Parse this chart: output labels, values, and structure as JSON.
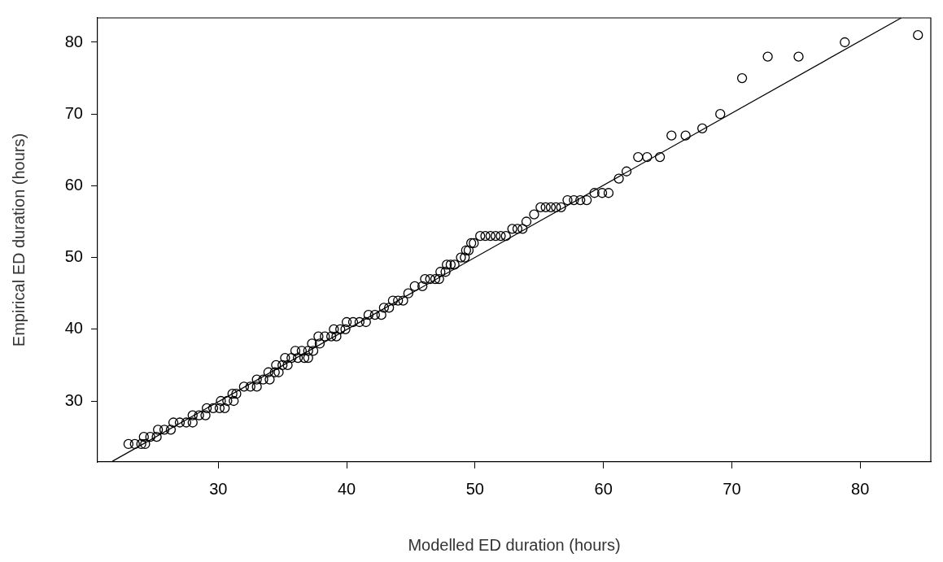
{
  "chart_data": {
    "type": "scatter",
    "xlabel": "Modelled ED duration (hours)",
    "ylabel": "Empirical ED duration (hours)",
    "xlim": [
      20.6,
      85.5
    ],
    "ylim": [
      21.5,
      83.4
    ],
    "xticks": [
      30,
      40,
      50,
      60,
      70,
      80
    ],
    "yticks": [
      30,
      40,
      50,
      60,
      70,
      80
    ],
    "grid": false,
    "legend": false,
    "series": [
      {
        "marker": "circle",
        "color": "#000000",
        "x": [
          23.0,
          23.5,
          24.0,
          24.3,
          24.2,
          24.7,
          25.2,
          25.3,
          25.8,
          26.3,
          26.5,
          27.0,
          27.5,
          28.0,
          28.0,
          28.5,
          29.0,
          29.1,
          29.6,
          30.1,
          30.5,
          30.2,
          30.7,
          31.2,
          31.1,
          31.4,
          32.0,
          32.5,
          33.0,
          33.0,
          33.5,
          34.0,
          33.9,
          34.4,
          34.7,
          34.5,
          35.0,
          35.4,
          35.2,
          35.7,
          36.2,
          36.7,
          37.0,
          36.0,
          36.5,
          37.0,
          37.4,
          37.3,
          37.9,
          37.8,
          38.3,
          38.8,
          39.2,
          39.0,
          39.5,
          39.9,
          40.0,
          40.5,
          41.0,
          41.5,
          41.7,
          42.2,
          42.7,
          42.9,
          43.3,
          43.6,
          44.0,
          44.4,
          44.8,
          45.3,
          45.9,
          46.1,
          46.5,
          46.9,
          47.2,
          47.3,
          47.7,
          47.8,
          48.1,
          48.4,
          48.9,
          49.2,
          49.3,
          49.5,
          49.7,
          49.9,
          50.4,
          50.8,
          51.2,
          51.6,
          52.0,
          52.4,
          52.9,
          53.3,
          53.7,
          54.0,
          54.6,
          55.1,
          55.5,
          55.9,
          56.3,
          56.7,
          57.2,
          57.7,
          58.2,
          58.7,
          59.3,
          59.9,
          60.4,
          61.2,
          61.8,
          62.7,
          63.4,
          64.4,
          65.3,
          66.4,
          67.7,
          69.1,
          70.8,
          72.8,
          75.2,
          78.8,
          84.5
        ],
        "values": [
          24,
          24,
          24,
          24,
          25,
          25,
          25,
          26,
          26,
          26,
          27,
          27,
          27,
          27,
          28,
          28,
          28,
          29,
          29,
          29,
          29,
          30,
          30,
          30,
          31,
          31,
          32,
          32,
          32,
          33,
          33,
          33,
          34,
          34,
          34,
          35,
          35,
          35,
          36,
          36,
          36,
          36,
          36,
          37,
          37,
          37,
          37,
          38,
          38,
          39,
          39,
          39,
          39,
          40,
          40,
          40,
          41,
          41,
          41,
          41,
          42,
          42,
          42,
          43,
          43,
          44,
          44,
          44,
          45,
          46,
          46,
          47,
          47,
          47,
          47,
          48,
          48,
          49,
          49,
          49,
          50,
          50,
          51,
          51,
          52,
          52,
          53,
          53,
          53,
          53,
          53,
          53,
          54,
          54,
          54,
          55,
          56,
          57,
          57,
          57,
          57,
          57,
          58,
          58,
          58,
          58,
          59,
          59,
          59,
          61,
          62,
          64,
          64,
          64,
          67,
          67,
          68,
          70,
          75,
          78,
          78,
          80,
          81
        ]
      },
      {
        "type": "line",
        "marker": "none",
        "color": "#000000",
        "x": [
          21.75,
          83.2
        ],
        "values": [
          21.6,
          83.4
        ]
      }
    ]
  }
}
